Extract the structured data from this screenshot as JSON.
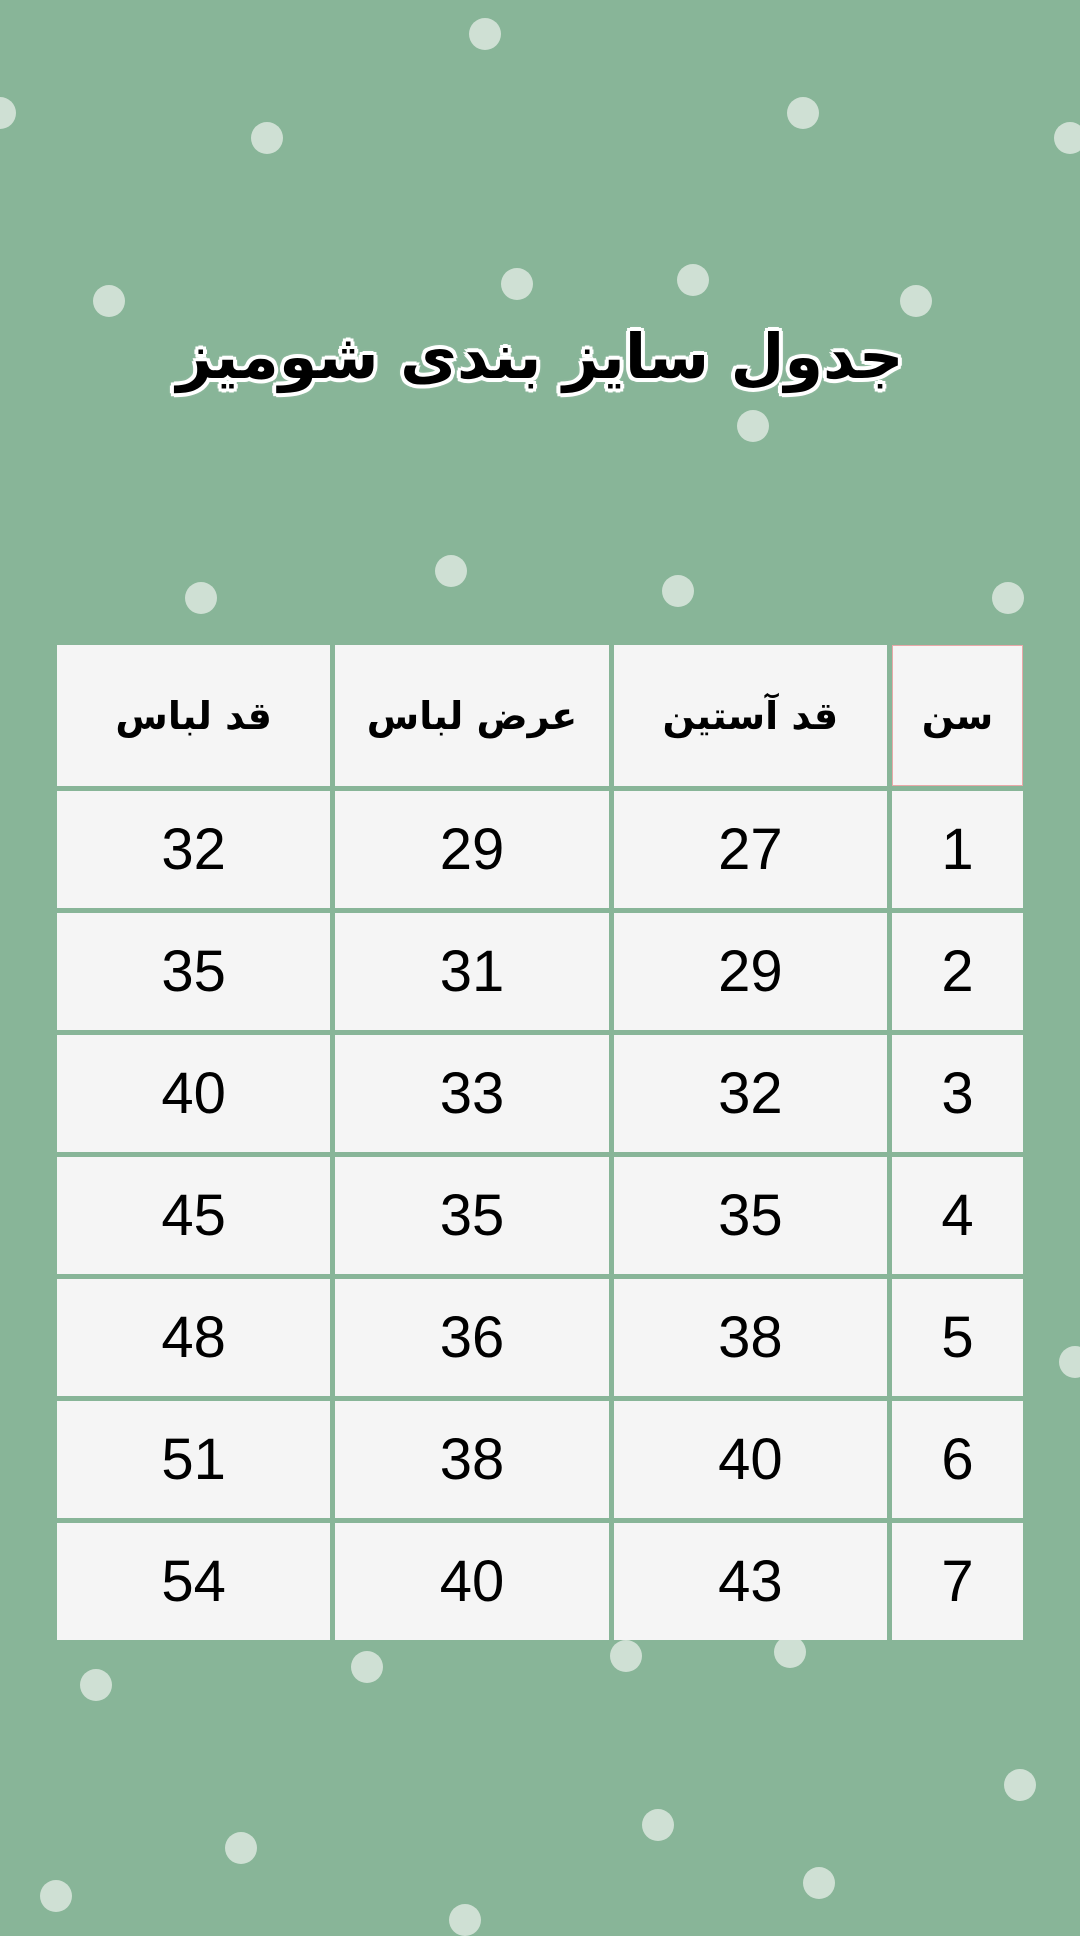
{
  "title": "جدول سایز بندی شومیز",
  "colors": {
    "background": "#88b598",
    "cell": "#f5f5f5",
    "dots": "#cfe0d4"
  },
  "table": {
    "headers": [
      "سن",
      "قد آستین",
      "عرض لباس",
      "قد لباس"
    ],
    "rows": [
      [
        "1",
        "27",
        "29",
        "32"
      ],
      [
        "2",
        "29",
        "31",
        "35"
      ],
      [
        "3",
        "32",
        "33",
        "40"
      ],
      [
        "4",
        "35",
        "35",
        "45"
      ],
      [
        "5",
        "38",
        "36",
        "48"
      ],
      [
        "6",
        "40",
        "38",
        "51"
      ],
      [
        "7",
        "43",
        "40",
        "54"
      ]
    ]
  }
}
